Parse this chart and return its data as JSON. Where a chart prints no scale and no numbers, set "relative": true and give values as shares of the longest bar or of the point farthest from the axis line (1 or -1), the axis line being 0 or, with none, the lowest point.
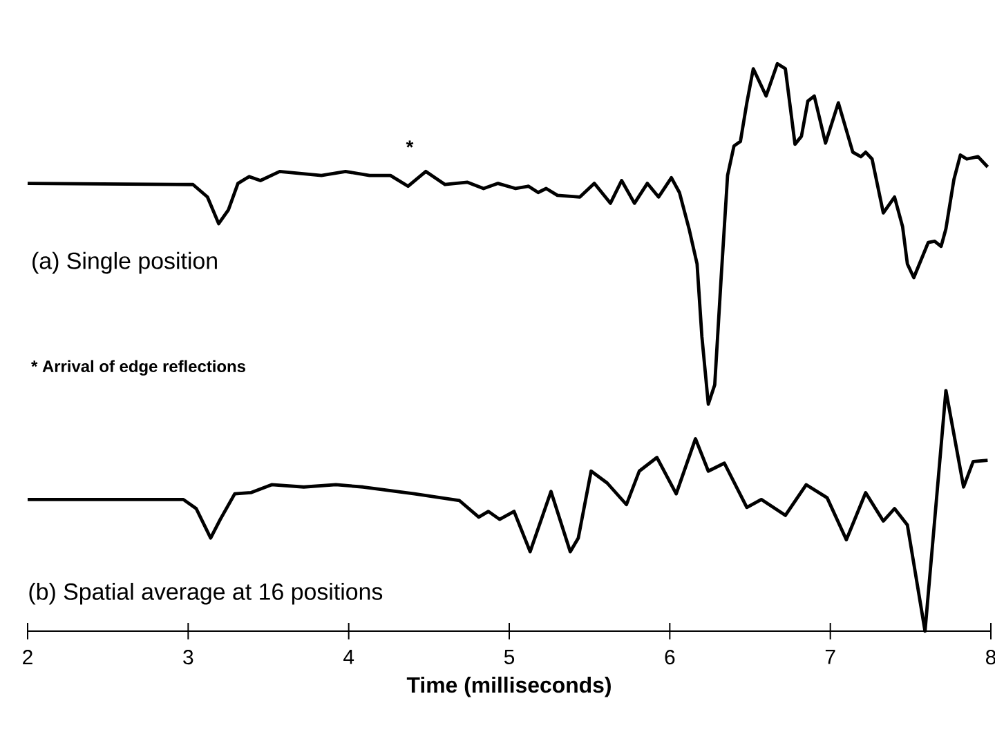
{
  "chart_data": {
    "type": "line",
    "relative": true,
    "xlabel": "Time (milliseconds)",
    "xlim": [
      2,
      8
    ],
    "xticks": [
      2,
      3,
      4,
      5,
      6,
      7,
      8
    ],
    "tick_labels": "x",
    "marker": "none",
    "line_style": "solid",
    "series": [
      {
        "color": "#000000",
        "x": [
          2.0,
          3.03,
          3.12,
          3.19,
          3.25,
          3.31,
          3.38,
          3.45,
          3.57,
          3.83,
          3.98,
          4.13,
          4.26,
          4.37,
          4.48,
          4.6,
          4.74,
          4.84,
          4.93,
          5.04,
          5.12,
          5.18,
          5.23,
          5.3,
          5.44,
          5.53,
          5.63,
          5.7,
          5.78,
          5.86,
          5.93,
          6.01,
          6.06,
          6.12,
          6.17,
          6.2,
          6.24,
          6.28,
          6.32,
          6.36,
          6.4,
          6.44,
          6.48,
          6.52,
          6.6,
          6.67,
          6.72,
          6.78,
          6.82,
          6.86,
          6.9,
          6.97,
          7.05,
          7.14,
          7.19,
          7.22,
          7.26,
          7.33,
          7.4,
          7.45,
          7.48,
          7.52,
          7.61,
          7.65,
          7.69,
          7.72,
          7.77,
          7.81,
          7.85,
          7.92,
          7.98
        ],
        "values": [
          0.789,
          0.787,
          0.765,
          0.718,
          0.742,
          0.789,
          0.801,
          0.794,
          0.81,
          0.803,
          0.81,
          0.803,
          0.803,
          0.784,
          0.81,
          0.787,
          0.791,
          0.78,
          0.789,
          0.78,
          0.784,
          0.773,
          0.78,
          0.768,
          0.765,
          0.789,
          0.754,
          0.794,
          0.754,
          0.789,
          0.765,
          0.799,
          0.773,
          0.709,
          0.647,
          0.519,
          0.4,
          0.434,
          0.623,
          0.803,
          0.855,
          0.863,
          0.931,
          0.991,
          0.943,
          1.0,
          0.991,
          0.858,
          0.872,
          0.934,
          0.943,
          0.86,
          0.931,
          0.844,
          0.836,
          0.844,
          0.832,
          0.737,
          0.765,
          0.713,
          0.647,
          0.623,
          0.685,
          0.687,
          0.678,
          0.709,
          0.796,
          0.839,
          0.832,
          0.836,
          0.818
        ]
      },
      {
        "color": "#000000",
        "x": [
          2.0,
          2.97,
          3.05,
          3.14,
          3.2,
          3.29,
          3.39,
          3.52,
          3.72,
          3.92,
          4.09,
          4.41,
          4.69,
          4.81,
          4.87,
          4.94,
          5.03,
          5.13,
          5.26,
          5.38,
          5.43,
          5.51,
          5.61,
          5.73,
          5.81,
          5.92,
          6.04,
          6.16,
          6.24,
          6.34,
          6.48,
          6.57,
          6.72,
          6.85,
          6.98,
          7.1,
          7.22,
          7.33,
          7.4,
          7.48,
          7.59,
          7.72,
          7.83,
          7.89,
          7.98
        ],
        "values": [
          0.232,
          0.232,
          0.216,
          0.164,
          0.197,
          0.242,
          0.244,
          0.258,
          0.254,
          0.258,
          0.254,
          0.242,
          0.23,
          0.201,
          0.211,
          0.197,
          0.211,
          0.14,
          0.246,
          0.14,
          0.164,
          0.282,
          0.261,
          0.223,
          0.282,
          0.306,
          0.242,
          0.339,
          0.282,
          0.296,
          0.218,
          0.232,
          0.204,
          0.258,
          0.235,
          0.161,
          0.244,
          0.194,
          0.216,
          0.187,
          0.0,
          0.424,
          0.254,
          0.299,
          0.301
        ]
      }
    ],
    "annotations": [
      "*",
      "(a) Single position",
      "* Arrival of edge reflections",
      "(b) Spatial average at 16 positions"
    ]
  }
}
